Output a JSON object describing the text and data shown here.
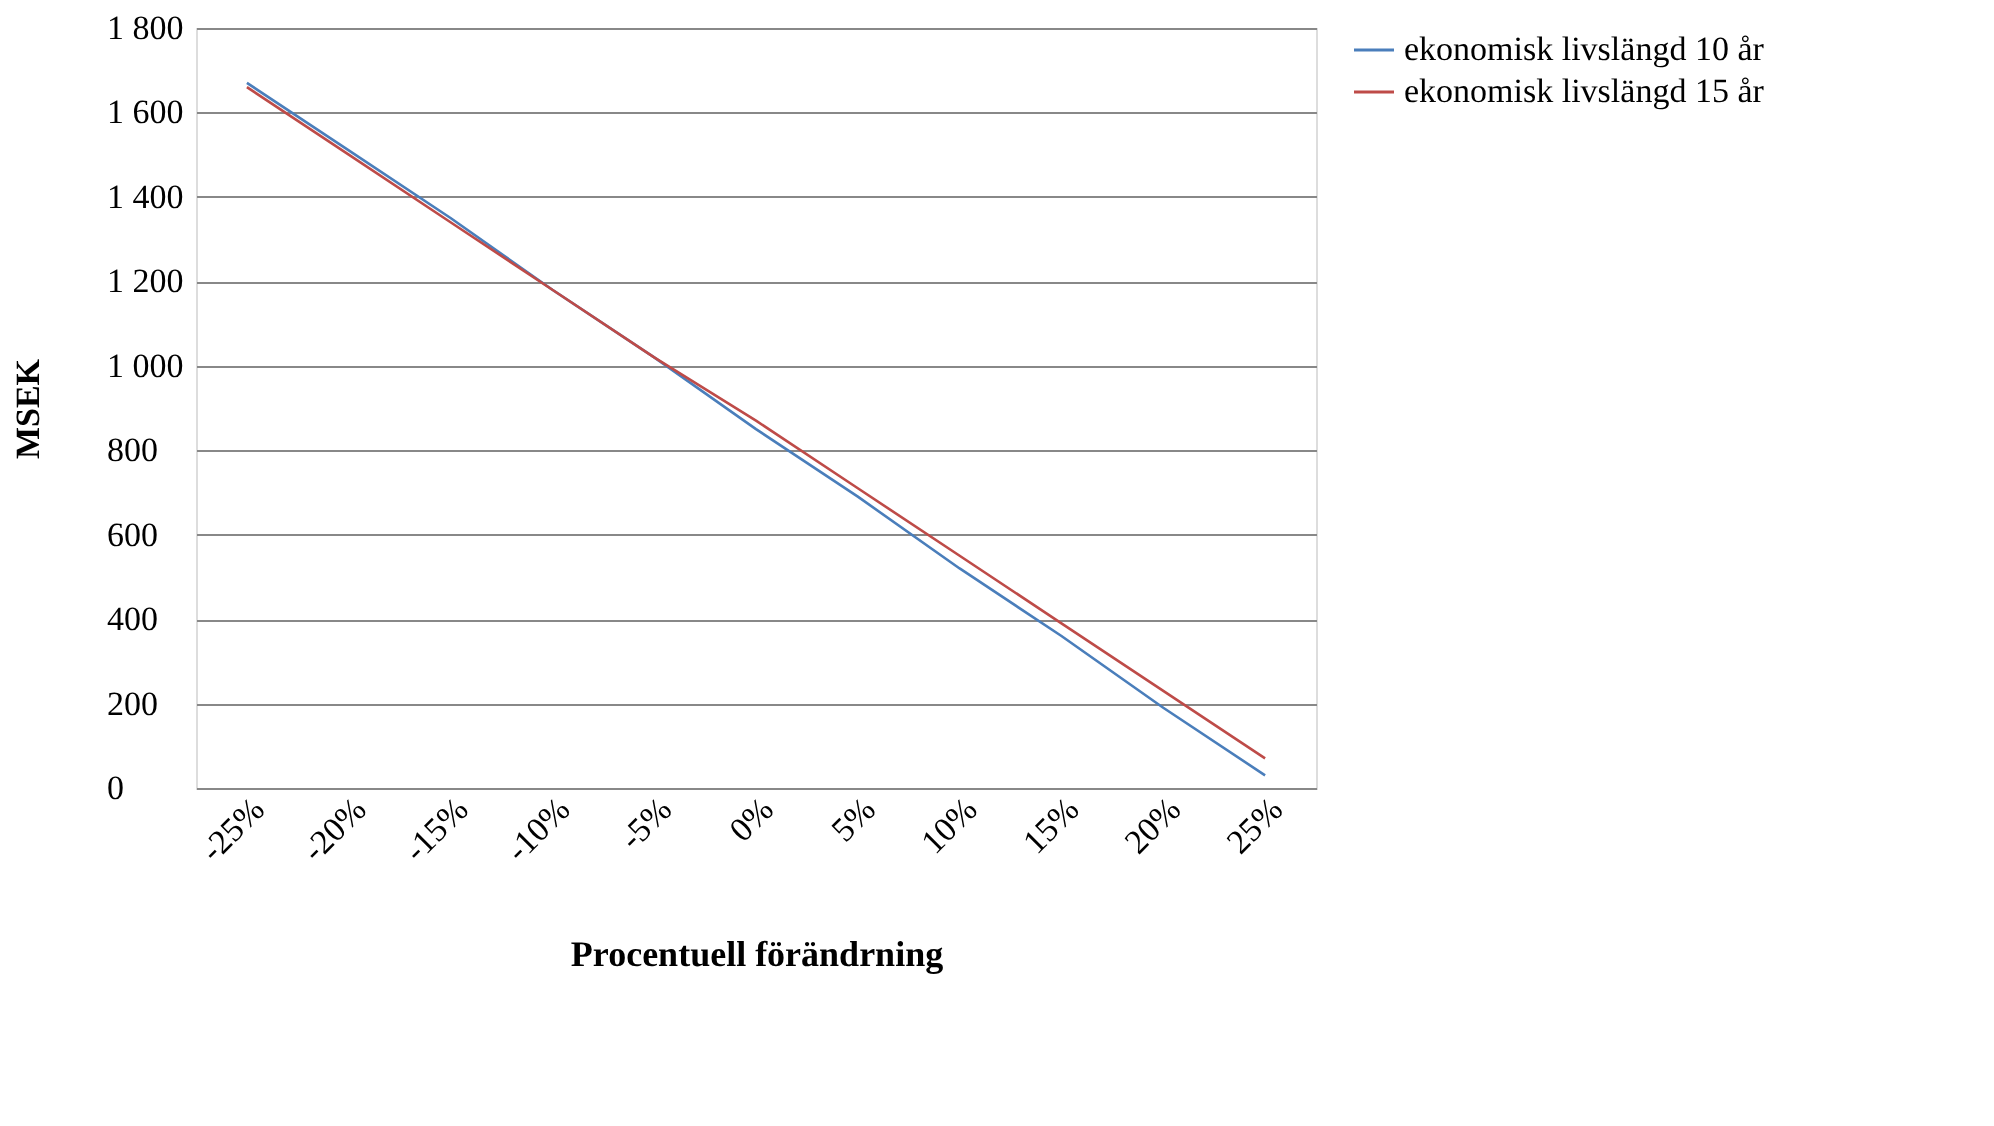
{
  "chart_data": {
    "type": "line",
    "xlabel": "Procentuell förändrning",
    "ylabel": "MSEK",
    "categories": [
      "-25%",
      "-20%",
      "-15%",
      "-10%",
      "-5%",
      "0%",
      "5%",
      "10%",
      "15%",
      "20%",
      "25%"
    ],
    "series": [
      {
        "name": "ekonomisk livslängd 10 år",
        "color": "#4a7ebb",
        "values": [
          1670,
          1510,
          1350,
          1180,
          1020,
          850,
          690,
          520,
          360,
          190,
          30
        ]
      },
      {
        "name": "ekonomisk livslängd 15 år",
        "color": "#be4b48",
        "values": [
          1660,
          1500,
          1340,
          1180,
          1020,
          870,
          710,
          550,
          390,
          230,
          70
        ]
      }
    ],
    "ylim": [
      0,
      1800
    ],
    "yticks": [
      0,
      200,
      400,
      600,
      800,
      {
        "value": 1000,
        "label": "1 000"
      },
      {
        "value": 1200,
        "label": "1 200"
      },
      {
        "value": 1400,
        "label": "1 400"
      },
      {
        "value": 1600,
        "label": "1 600"
      },
      {
        "value": 1800,
        "label": "1 800"
      }
    ],
    "grid": "y",
    "legend": "right",
    "marker": "none",
    "line_style": "solid"
  }
}
